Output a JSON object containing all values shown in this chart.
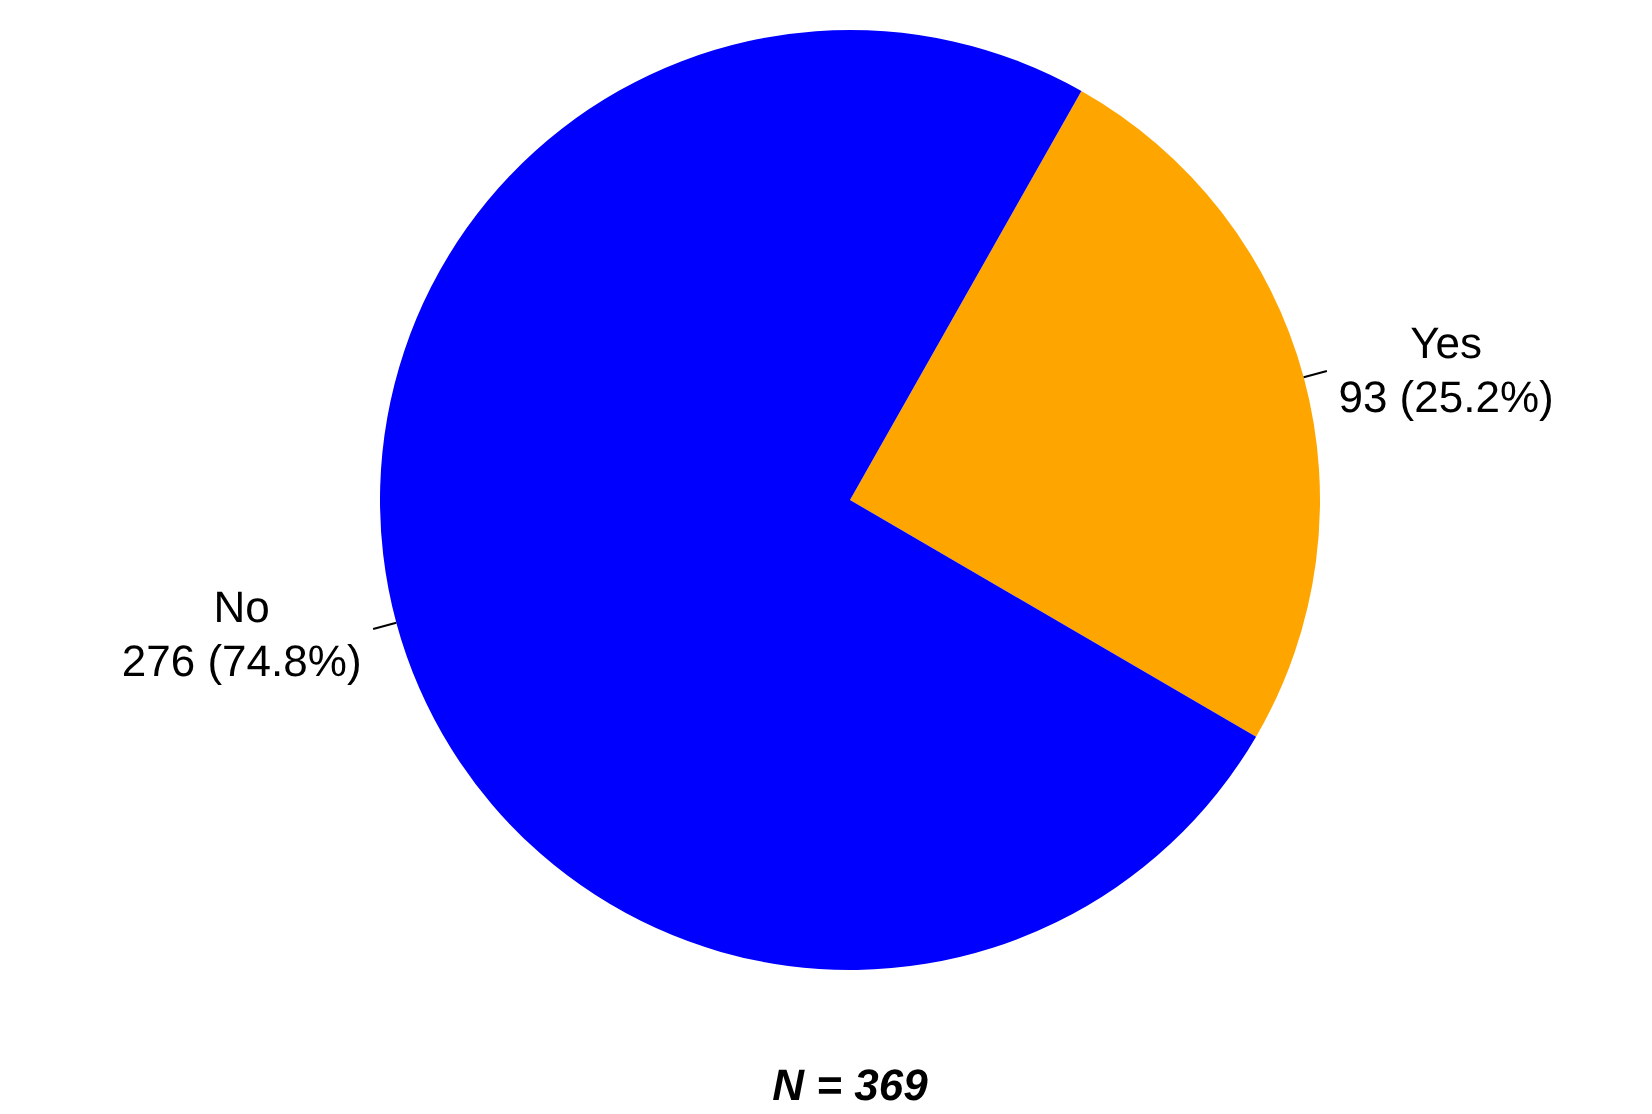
{
  "chart_data": {
    "type": "pie",
    "categories": [
      "Yes",
      "No"
    ],
    "values": [
      93,
      276
    ],
    "colors": [
      "#ffa500",
      "#0000ff"
    ],
    "value_labels": [
      "93 (25.2%)",
      "276 (74.8%)"
    ],
    "annotations": [
      "N = 369"
    ],
    "legend": false
  }
}
